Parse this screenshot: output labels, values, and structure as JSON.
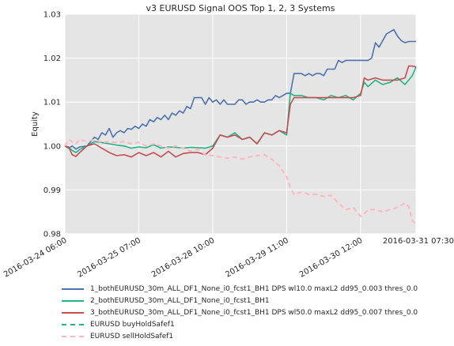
{
  "chart_data": {
    "type": "line",
    "title": "v3 EURUSD Signal OOS Top 1, 2, 3 Systems",
    "ylabel": "Equity",
    "xlabel": "",
    "ylim": [
      0.98,
      1.03
    ],
    "yticks": [
      "0.98",
      "0.99",
      "1.00",
      "1.01",
      "1.02",
      "1.03"
    ],
    "xticks": [
      {
        "label": "2016-03-24 06:00",
        "at": 0
      },
      {
        "label": "2016-03-25 07:00",
        "at": 20
      },
      {
        "label": "2016-03-28 10:00",
        "at": 40
      },
      {
        "label": "2016-03-29 11:00",
        "at": 60
      },
      {
        "label": "2016-03-30 12:00",
        "at": 80
      },
      {
        "label": "2016-03-31 07:30",
        "at": 95
      }
    ],
    "x_count": 96,
    "grid": true,
    "legend_position": "below",
    "background": "#e5e5e5",
    "series": [
      {
        "name": "1_bothEURUSD_30m_ALL_DF1_None_i0_fcst1_BH1 DPS wl10.0 maxL2 dd95_0.003 thres_0.0",
        "color": "#4c72b0",
        "dashed": false,
        "x": [
          0,
          1,
          2,
          3,
          4,
          6,
          7,
          8,
          9,
          10,
          11,
          12,
          13,
          14,
          15,
          16,
          17,
          18,
          19,
          20,
          21,
          22,
          23,
          24,
          25,
          26,
          27,
          28,
          29,
          30,
          31,
          32,
          33,
          34,
          35,
          36,
          37,
          38,
          39,
          40,
          41,
          42,
          43,
          44,
          45,
          46,
          47,
          48,
          49,
          50,
          51,
          52,
          53,
          54,
          55,
          56,
          57,
          58,
          59,
          60,
          61,
          62,
          63,
          64,
          65,
          66,
          67,
          68,
          69,
          70,
          71,
          72,
          73,
          74,
          75,
          76,
          77,
          78,
          79,
          80,
          81,
          82,
          83,
          84,
          85,
          86,
          87,
          88,
          89,
          90,
          91,
          92,
          93,
          94,
          95
        ],
        "y": [
          1.0,
          0.9995,
          1.0,
          0.9993,
          0.9998,
          1.0,
          1.001,
          1.002,
          1.0015,
          1.003,
          1.0025,
          1.004,
          1.002,
          1.003,
          1.0035,
          1.003,
          1.004,
          1.0038,
          1.0045,
          1.004,
          1.005,
          1.0045,
          1.006,
          1.0055,
          1.0065,
          1.006,
          1.007,
          1.006,
          1.0075,
          1.007,
          1.008,
          1.0075,
          1.009,
          1.0085,
          1.011,
          1.011,
          1.011,
          1.0095,
          1.011,
          1.01,
          1.0105,
          1.0095,
          1.0105,
          1.0095,
          1.0095,
          1.0095,
          1.0105,
          1.0105,
          1.0095,
          1.01,
          1.01,
          1.0105,
          1.01,
          1.01,
          1.0105,
          1.0105,
          1.0115,
          1.011,
          1.0115,
          1.012,
          1.012,
          1.0165,
          1.0165,
          1.0165,
          1.016,
          1.0165,
          1.016,
          1.0165,
          1.0165,
          1.016,
          1.0175,
          1.0175,
          1.0175,
          1.0195,
          1.019,
          1.0195,
          1.0195,
          1.0195,
          1.0195,
          1.0195,
          1.0195,
          1.0195,
          1.02,
          1.0235,
          1.0225,
          1.024,
          1.0255,
          1.026,
          1.0265,
          1.025,
          1.024,
          1.0235,
          1.0238,
          1.0238,
          1.0238
        ]
      },
      {
        "name": "2_bothEURUSD_30m_ALL_DF1_None_i0_fcst1_BH1",
        "color": "#1fb584",
        "dashed": false,
        "x": [
          0,
          1,
          2,
          3,
          4,
          6,
          8,
          10,
          12,
          14,
          16,
          18,
          20,
          22,
          24,
          26,
          28,
          30,
          32,
          34,
          36,
          38,
          40,
          42,
          44,
          46,
          48,
          50,
          52,
          54,
          56,
          58,
          60,
          61,
          62,
          64,
          66,
          68,
          70,
          72,
          74,
          76,
          78,
          80,
          81,
          82,
          84,
          86,
          88,
          90,
          92,
          93,
          94,
          95
        ],
        "y": [
          1.0,
          0.9997,
          0.999,
          0.9985,
          0.9992,
          1.0,
          1.001,
          1.0008,
          1.0005,
          1.0002,
          1.0,
          0.9995,
          0.9998,
          0.9996,
          1.0003,
          0.9995,
          0.9998,
          0.9997,
          0.9995,
          0.9997,
          0.9996,
          0.9995,
          1.0,
          1.0025,
          1.002,
          1.003,
          1.0015,
          1.002,
          1.0005,
          1.003,
          1.0025,
          1.0035,
          1.0025,
          1.012,
          1.0115,
          1.0115,
          1.011,
          1.011,
          1.0105,
          1.0115,
          1.011,
          1.0115,
          1.0105,
          1.012,
          1.0145,
          1.0135,
          1.015,
          1.014,
          1.0145,
          1.0155,
          1.014,
          1.015,
          1.016,
          1.018
        ]
      },
      {
        "name": "3_bothEURUSD_30m_ALL_DF1_None_i0_fcst1_BH1 DPS wl50.0 maxL2 dd95_0.007 thres_0.0",
        "color": "#c44e52",
        "dashed": false,
        "x": [
          0,
          1,
          2,
          3,
          4,
          6,
          8,
          10,
          12,
          14,
          16,
          18,
          20,
          22,
          24,
          26,
          28,
          30,
          32,
          34,
          36,
          38,
          40,
          42,
          44,
          46,
          48,
          50,
          52,
          54,
          56,
          58,
          60,
          61,
          62,
          64,
          66,
          68,
          70,
          72,
          74,
          76,
          78,
          80,
          81,
          82,
          84,
          86,
          88,
          90,
          92,
          93,
          94,
          95
        ],
        "y": [
          1.0,
          0.9998,
          0.998,
          0.9976,
          0.9985,
          1.0,
          1.0005,
          0.9995,
          0.9985,
          0.9978,
          0.998,
          0.9975,
          0.9985,
          0.9978,
          0.9985,
          0.9975,
          0.9988,
          0.9975,
          0.9983,
          0.9985,
          0.9985,
          0.998,
          0.9995,
          1.0025,
          1.002,
          1.0025,
          1.0015,
          1.002,
          1.0005,
          1.003,
          1.0025,
          1.0035,
          1.003,
          1.0095,
          1.011,
          1.011,
          1.011,
          1.011,
          1.011,
          1.011,
          1.011,
          1.011,
          1.011,
          1.0115,
          1.0155,
          1.015,
          1.0155,
          1.015,
          1.015,
          1.015,
          1.0155,
          1.0182,
          1.0182,
          1.018
        ]
      },
      {
        "name": "EURUSD buyHoldSafef1",
        "color": "#1fb584",
        "dashed": true,
        "x": [],
        "y": []
      },
      {
        "name": "EURUSD sellHoldSafef1",
        "color": "#ffb6c1",
        "dashed": true,
        "x": [
          0,
          1,
          2,
          3,
          4,
          6,
          8,
          10,
          12,
          14,
          16,
          18,
          20,
          22,
          24,
          26,
          28,
          30,
          32,
          34,
          36,
          38,
          40,
          42,
          44,
          46,
          48,
          50,
          52,
          54,
          56,
          58,
          60,
          61,
          62,
          64,
          66,
          68,
          70,
          72,
          74,
          76,
          78,
          80,
          81,
          82,
          84,
          86,
          88,
          90,
          92,
          93,
          94,
          95
        ],
        "y": [
          1.0,
          1.0015,
          1.001,
          1.0005,
          1.0015,
          1.001,
          1.0015,
          1.0008,
          1.001,
          1.0008,
          1.001,
          1.0005,
          1.0008,
          1.0,
          1.0005,
          1.0,
          0.9995,
          1.0,
          0.9995,
          0.9988,
          0.9992,
          0.998,
          0.9978,
          0.9975,
          0.9972,
          0.9975,
          0.997,
          0.9975,
          0.9978,
          0.998,
          0.997,
          0.9955,
          0.993,
          0.9905,
          0.989,
          0.9895,
          0.989,
          0.989,
          0.9885,
          0.9888,
          0.987,
          0.9855,
          0.986,
          0.984,
          0.9845,
          0.9855,
          0.9855,
          0.985,
          0.9855,
          0.986,
          0.987,
          0.9862,
          0.983,
          0.9822
        ]
      }
    ]
  }
}
